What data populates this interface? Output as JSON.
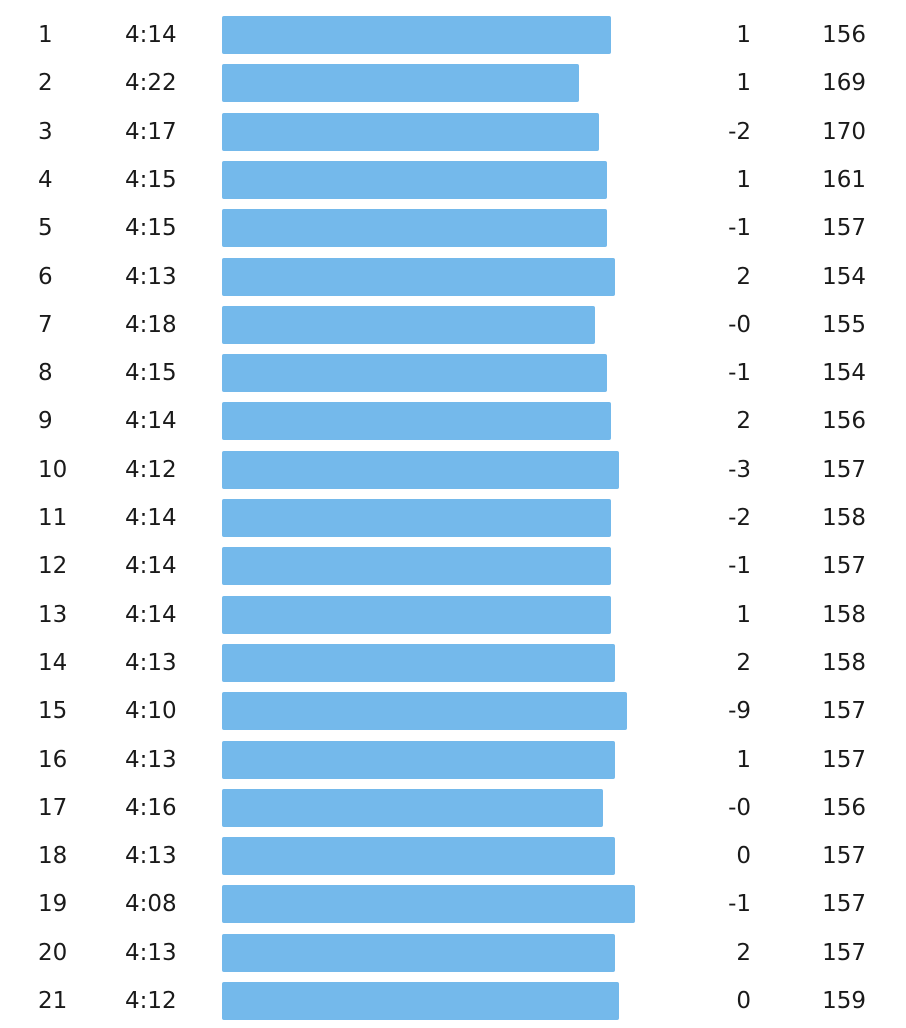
{
  "colors": {
    "bar": "#74b9eb",
    "text": "#1a1a1a",
    "background": "#ffffff"
  },
  "splits": [
    {
      "km": "1",
      "pace": "4:14",
      "elevation": "1",
      "heart_rate": "156"
    },
    {
      "km": "2",
      "pace": "4:22",
      "elevation": "1",
      "heart_rate": "169"
    },
    {
      "km": "3",
      "pace": "4:17",
      "elevation": "-2",
      "heart_rate": "170"
    },
    {
      "km": "4",
      "pace": "4:15",
      "elevation": "1",
      "heart_rate": "161"
    },
    {
      "km": "5",
      "pace": "4:15",
      "elevation": "-1",
      "heart_rate": "157"
    },
    {
      "km": "6",
      "pace": "4:13",
      "elevation": "2",
      "heart_rate": "154"
    },
    {
      "km": "7",
      "pace": "4:18",
      "elevation": "-0",
      "heart_rate": "155"
    },
    {
      "km": "8",
      "pace": "4:15",
      "elevation": "-1",
      "heart_rate": "154"
    },
    {
      "km": "9",
      "pace": "4:14",
      "elevation": "2",
      "heart_rate": "156"
    },
    {
      "km": "10",
      "pace": "4:12",
      "elevation": "-3",
      "heart_rate": "157"
    },
    {
      "km": "11",
      "pace": "4:14",
      "elevation": "-2",
      "heart_rate": "158"
    },
    {
      "km": "12",
      "pace": "4:14",
      "elevation": "-1",
      "heart_rate": "157"
    },
    {
      "km": "13",
      "pace": "4:14",
      "elevation": "1",
      "heart_rate": "158"
    },
    {
      "km": "14",
      "pace": "4:13",
      "elevation": "2",
      "heart_rate": "158"
    },
    {
      "km": "15",
      "pace": "4:10",
      "elevation": "-9",
      "heart_rate": "157"
    },
    {
      "km": "16",
      "pace": "4:13",
      "elevation": "1",
      "heart_rate": "157"
    },
    {
      "km": "17",
      "pace": "4:16",
      "elevation": "-0",
      "heart_rate": "156"
    },
    {
      "km": "18",
      "pace": "4:13",
      "elevation": "0",
      "heart_rate": "157"
    },
    {
      "km": "19",
      "pace": "4:08",
      "elevation": "-1",
      "heart_rate": "157"
    },
    {
      "km": "20",
      "pace": "4:13",
      "elevation": "2",
      "heart_rate": "157"
    },
    {
      "km": "21",
      "pace": "4:12",
      "elevation": "0",
      "heart_rate": "159"
    }
  ]
}
